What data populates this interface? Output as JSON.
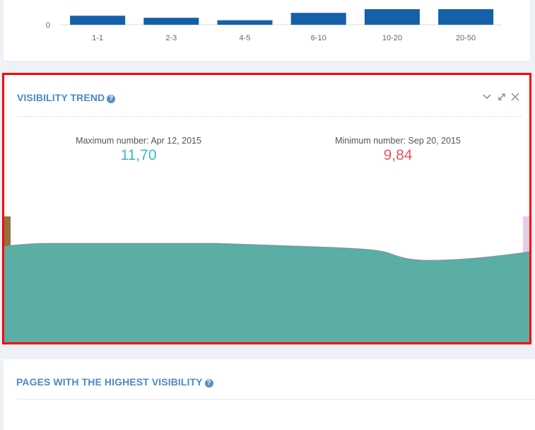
{
  "distribution_chart": {
    "y_tick": "0",
    "categories": [
      "1-1",
      "2-3",
      "4-5",
      "6-10",
      "10-20",
      "20-50"
    ],
    "values": [
      22,
      17,
      11,
      29,
      38,
      38
    ],
    "bar_color": "#1560a8"
  },
  "visibility_trend": {
    "title": "VISIBILITY TREND",
    "help_icon": "question-circle-icon",
    "controls": [
      "chevron-down-icon",
      "expand-icon",
      "close-icon"
    ],
    "max": {
      "label": "Maximum number: Apr 12, 2015",
      "value": "11,70",
      "color": "#3fb8c9"
    },
    "min": {
      "label": "Minimum number: Sep 20, 2015",
      "value": "9,84",
      "color": "#e05a63"
    },
    "area_color": "#5aaea3"
  },
  "pages_highest_visibility": {
    "title": "PAGES WITH THE HIGHEST VISIBILITY",
    "help_icon": "question-circle-icon"
  }
}
